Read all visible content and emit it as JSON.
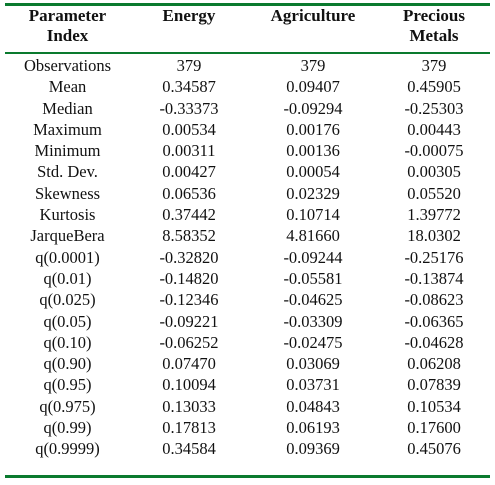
{
  "table": {
    "header": {
      "col0_line1": "Parameter",
      "col0_line2": "Index",
      "col1": "Energy",
      "col2": "Agriculture",
      "col3_line1": "Precious",
      "col3_line2": "Metals"
    },
    "rows": [
      {
        "label": "Observations",
        "energy": "379",
        "agriculture": "379",
        "precious_metals": "379"
      },
      {
        "label": "Mean",
        "energy": "0.34587",
        "agriculture": "0.09407",
        "precious_metals": "0.45905"
      },
      {
        "label": "Median",
        "energy": "-0.33373",
        "agriculture": "-0.09294",
        "precious_metals": "-0.25303"
      },
      {
        "label": "Maximum",
        "energy": "0.00534",
        "agriculture": "0.00176",
        "precious_metals": "0.00443"
      },
      {
        "label": "Minimum",
        "energy": "0.00311",
        "agriculture": "0.00136",
        "precious_metals": "-0.00075"
      },
      {
        "label": "Std. Dev.",
        "energy": "0.00427",
        "agriculture": "0.00054",
        "precious_metals": "0.00305"
      },
      {
        "label": "Skewness",
        "energy": "0.06536",
        "agriculture": "0.02329",
        "precious_metals": "0.05520"
      },
      {
        "label": "Kurtosis",
        "energy": "0.37442",
        "agriculture": "0.10714",
        "precious_metals": "1.39772"
      },
      {
        "label": "JarqueBera",
        "energy": "8.58352",
        "agriculture": "4.81660",
        "precious_metals": "18.0302"
      },
      {
        "label": "q(0.0001)",
        "energy": "-0.32820",
        "agriculture": "-0.09244",
        "precious_metals": "-0.25176"
      },
      {
        "label": "q(0.01)",
        "energy": "-0.14820",
        "agriculture": "-0.05581",
        "precious_metals": "-0.13874"
      },
      {
        "label": "q(0.025)",
        "energy": "-0.12346",
        "agriculture": "-0.04625",
        "precious_metals": "-0.08623"
      },
      {
        "label": "q(0.05)",
        "energy": "-0.09221",
        "agriculture": "-0.03309",
        "precious_metals": "-0.06365"
      },
      {
        "label": "q(0.10)",
        "energy": "-0.06252",
        "agriculture": "-0.02475",
        "precious_metals": "-0.04628"
      },
      {
        "label": "q(0.90)",
        "energy": "0.07470",
        "agriculture": "0.03069",
        "precious_metals": "0.06208"
      },
      {
        "label": "q(0.95)",
        "energy": "0.10094",
        "agriculture": "0.03731",
        "precious_metals": "0.07839"
      },
      {
        "label": "q(0.975)",
        "energy": "0.13033",
        "agriculture": "0.04843",
        "precious_metals": "0.10534"
      },
      {
        "label": "q(0.99)",
        "energy": "0.17813",
        "agriculture": "0.06193",
        "precious_metals": "0.17600"
      },
      {
        "label": "q(0.9999)",
        "energy": "0.34584",
        "agriculture": "0.09369",
        "precious_metals": "0.45076"
      }
    ]
  },
  "colors": {
    "rule": "#0a7a2e",
    "text": "#111111"
  }
}
